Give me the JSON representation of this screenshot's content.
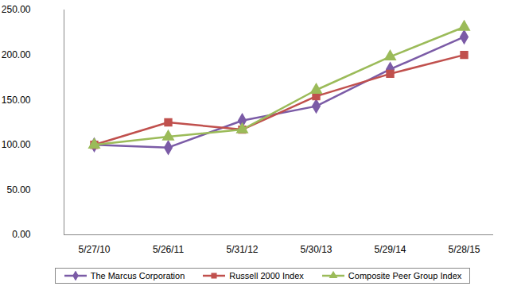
{
  "chart_data": {
    "type": "line",
    "categories": [
      "5/27/10",
      "5/26/11",
      "5/31/12",
      "5/30/13",
      "5/29/14",
      "5/28/15"
    ],
    "series": [
      {
        "name": "The Marcus Corporation",
        "color": "#7b5ba6",
        "marker": "diamond",
        "values": [
          100,
          97,
          127,
          143,
          184,
          220
        ]
      },
      {
        "name": "Russell 2000 Index",
        "color": "#c0504d",
        "marker": "square",
        "values": [
          100,
          125,
          117,
          154,
          179,
          200
        ]
      },
      {
        "name": "Composite Peer Group Index",
        "color": "#9bbb59",
        "marker": "triangle",
        "values": [
          100,
          109,
          117,
          161,
          198,
          231
        ]
      }
    ],
    "ylim": [
      0,
      250
    ],
    "yticks": [
      {
        "value": 0,
        "label": "0.00"
      },
      {
        "value": 50,
        "label": "50.00"
      },
      {
        "value": 100,
        "label": "100.00"
      },
      {
        "value": 150,
        "label": "150.00"
      },
      {
        "value": 200,
        "label": "200.00"
      },
      {
        "value": 250,
        "label": "250.00"
      }
    ],
    "grid": false,
    "legend": "bottom"
  }
}
